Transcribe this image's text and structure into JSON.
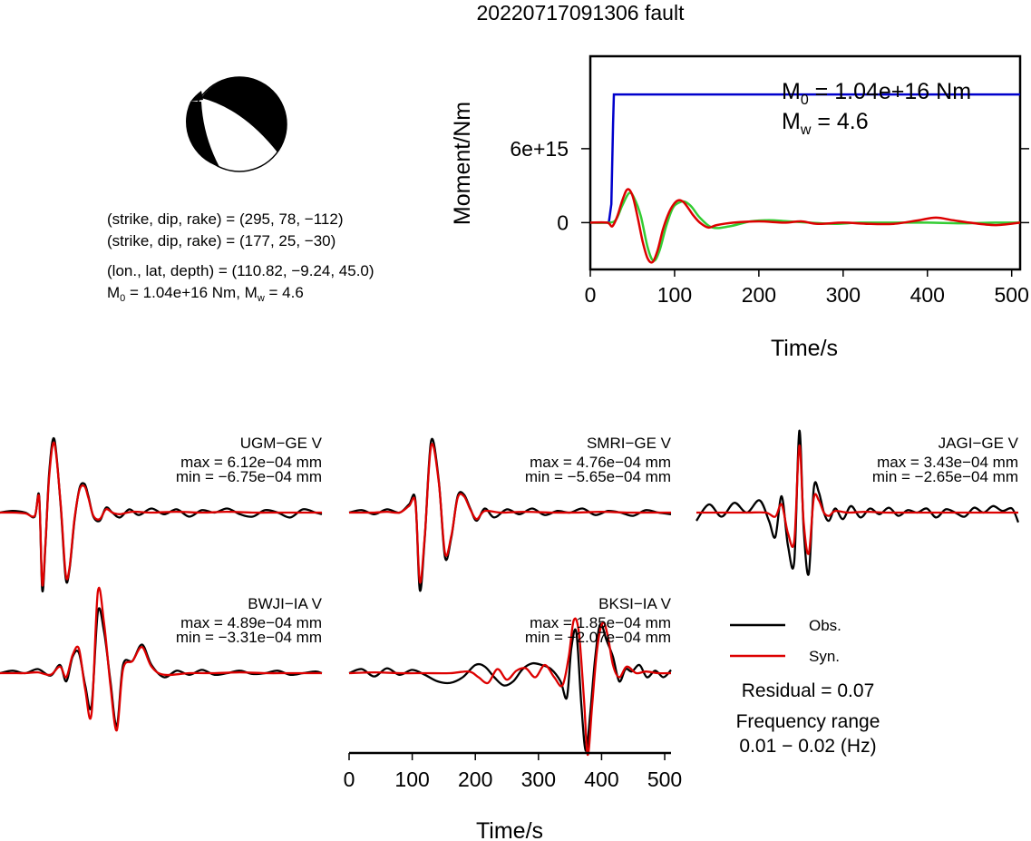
{
  "title": "20220717091306 fault",
  "mechanism": {
    "plane1": "(strike, dip, rake) = (295, 78, −112)",
    "plane2": "(strike, dip, rake) = (177, 25, −30)",
    "location": "(lon., lat, depth) = (110.82, −9.24, 45.0)",
    "moment_prefix": "M",
    "moment_sub": "0",
    "moment_rest": " = 1.04e+16 Nm, M",
    "moment_sub2": "w",
    "moment_end": " = 4.6"
  },
  "stf_annotation": {
    "m0_prefix": "M",
    "m0_sub": "0",
    "m0_value": " = 1.04e+16 Nm",
    "mw_prefix": "M",
    "mw_sub": "w",
    "mw_value": " = 4.6"
  },
  "legend": {
    "obs": "Obs.",
    "syn": "Syn.",
    "residual": "Residual = 0.07",
    "freq_label": "Frequency range",
    "freq_value": "0.01 − 0.02 (Hz)"
  },
  "colors": {
    "moment": "#0000cc",
    "observed": "#000000",
    "synthetic": "#dd0000",
    "stf_green": "#33cc33"
  },
  "chart_data": [
    {
      "type": "line",
      "ylabel": "Moment/Nm",
      "xlabel": "Time/s",
      "xlim": [
        0,
        510
      ],
      "ylim": [
        -3800000000000000.0,
        1.35e+16
      ],
      "xticks": [
        "0",
        "100",
        "200",
        "300",
        "400",
        "500"
      ],
      "yticks": [
        "0",
        "6e+15"
      ],
      "xtick_values": [
        0,
        100,
        200,
        300,
        400,
        500
      ],
      "ytick_values": [
        0,
        6000000000000000.0
      ],
      "series": [
        {
          "color": "#0000cc",
          "x": [
            0,
            22,
            25,
            27,
            28,
            510
          ],
          "y": [
            0,
            0,
            1500000000000000.0,
            8000000000000000.0,
            1.04e+16,
            1.04e+16
          ]
        },
        {
          "color": "#33cc33",
          "x": [
            0,
            20,
            30,
            38,
            46,
            52,
            60,
            68,
            75,
            82,
            90,
            98,
            106,
            112,
            120,
            130,
            145,
            165,
            190,
            212,
            235,
            260,
            290,
            320,
            360,
            400,
            440,
            480,
            510
          ],
          "y": [
            0,
            0,
            200000000000000.0,
            1400000000000000.0,
            2400000000000000.0,
            2000000000000000.0,
            500000000000000.0,
            -2000000000000000.0,
            -3100000000000000.0,
            -2300000000000000.0,
            -300000000000000.0,
            1200000000000000.0,
            1650000000000000.0,
            1700000000000000.0,
            1300000000000000.0,
            400000000000000.0,
            -400000000000000.0,
            -300000000000000.0,
            100000000000000.0,
            200000000000000.0,
            100000000000000.0,
            0,
            -100000000000000.0,
            0,
            0,
            0,
            -50000000000000.0,
            0,
            0
          ]
        },
        {
          "color": "#dd0000",
          "x": [
            0,
            20,
            26,
            32,
            38,
            44,
            50,
            56,
            62,
            68,
            74,
            80,
            86,
            92,
            98,
            104,
            110,
            116,
            122,
            130,
            140,
            150,
            170,
            200,
            230,
            250,
            270,
            300,
            330,
            360,
            390,
            410,
            430,
            450,
            480,
            510
          ],
          "y": [
            0,
            0,
            -300000000000000.0,
            500000000000000.0,
            1800000000000000.0,
            2700000000000000.0,
            2200000000000000.0,
            500000000000000.0,
            -1500000000000000.0,
            -2900000000000000.0,
            -3200000000000000.0,
            -2200000000000000.0,
            -600000000000000.0,
            600000000000000.0,
            1400000000000000.0,
            1800000000000000.0,
            1700000000000000.0,
            1200000000000000.0,
            600000000000000.0,
            0,
            -400000000000000.0,
            -200000000000000.0,
            0,
            100000000000000.0,
            0,
            100000000000000.0,
            -100000000000000.0,
            0,
            -100000000000000.0,
            -100000000000000.0,
            200000000000000.0,
            400000000000000.0,
            200000000000000.0,
            0,
            -200000000000000.0,
            0
          ]
        }
      ]
    },
    {
      "type": "line",
      "xlabel": "Time/s",
      "xlim": [
        0,
        510
      ],
      "xticks": [
        "0",
        "100",
        "200",
        "300",
        "400",
        "500"
      ],
      "xtick_values": [
        0,
        100,
        200,
        300,
        400,
        500
      ],
      "stations": [
        {
          "label": "UGM−GE V",
          "max": "max = 6.12e−04 mm",
          "min": "min = −6.75e−04 mm",
          "max_value": 0.000612,
          "min_value": -0.000675,
          "observed": {
            "x": [
              0,
              20,
              40,
              55,
              62,
              67,
              72,
              78,
              86,
              96,
              104,
              110,
              118,
              126,
              134,
              140,
              148,
              158,
              168,
              178,
              190,
              205,
              220,
              240,
              260,
              280,
              300,
              320,
              340,
              360,
              380,
              400,
              420,
              440,
              460,
              480,
              500,
              510
            ],
            "y": [
              0,
              0.02,
              0.0,
              -0.05,
              0.2,
              -0.95,
              -0.4,
              0.5,
              0.9,
              0.1,
              -0.8,
              -0.7,
              -0.1,
              0.3,
              0.35,
              0.2,
              -0.05,
              -0.1,
              0.06,
              0.0,
              -0.06,
              0.04,
              -0.03,
              0.05,
              -0.02,
              0.04,
              -0.05,
              0.03,
              0.0,
              0.05,
              -0.02,
              -0.05,
              0.03,
              0.0,
              -0.06,
              0.04,
              0.0,
              -0.02
            ]
          },
          "synthetic": {
            "x": [
              0,
              20,
              40,
              55,
              62,
              67,
              72,
              78,
              86,
              96,
              104,
              110,
              118,
              126,
              134,
              140,
              148,
              158,
              168,
              178,
              190,
              210,
              240,
              280,
              320,
              360,
              400,
              440,
              480,
              510
            ],
            "y": [
              0,
              0.0,
              -0.01,
              -0.04,
              0.18,
              -0.88,
              -0.38,
              0.45,
              0.85,
              0.12,
              -0.75,
              -0.68,
              -0.08,
              0.28,
              0.32,
              0.18,
              -0.04,
              -0.08,
              0.04,
              0.0,
              -0.02,
              0.01,
              0.0,
              0.01,
              0.0,
              0.01,
              0.0,
              0.0,
              0.0,
              0.0
            ]
          }
        },
        {
          "label": "SMRI−GE V",
          "max": "max = 4.76e−04 mm",
          "min": "min = −5.65e−04 mm",
          "max_value": 0.000476,
          "min_value": -0.000565,
          "observed": {
            "x": [
              0,
              20,
              40,
              60,
              80,
              95,
              105,
              112,
              120,
              130,
              142,
              152,
              162,
              172,
              182,
              192,
              202,
              215,
              230,
              250,
              270,
              290,
              310,
              330,
              350,
              370,
              390,
              410,
              430,
              450,
              470,
              490,
              510
            ],
            "y": [
              0,
              0.03,
              -0.02,
              0.04,
              0.0,
              0.1,
              0.15,
              -0.95,
              -0.3,
              0.88,
              0.4,
              -0.55,
              -0.3,
              0.2,
              0.22,
              0.05,
              -0.1,
              0.05,
              -0.06,
              0.04,
              -0.02,
              0.05,
              -0.03,
              0.02,
              0.0,
              0.05,
              -0.03,
              0.02,
              0.0,
              -0.04,
              0.03,
              0.0,
              -0.02
            ]
          },
          "synthetic": {
            "x": [
              0,
              20,
              40,
              60,
              80,
              95,
              105,
              112,
              120,
              130,
              142,
              152,
              162,
              172,
              182,
              192,
              202,
              215,
              240,
              280,
              320,
              360,
              400,
              440,
              480,
              510
            ],
            "y": [
              0,
              0.0,
              0.0,
              0.01,
              0.0,
              0.08,
              0.12,
              -0.85,
              -0.28,
              0.82,
              0.38,
              -0.5,
              -0.28,
              0.18,
              0.2,
              0.04,
              -0.08,
              0.02,
              0.0,
              0.01,
              0.0,
              0.0,
              0.01,
              0.0,
              0.0,
              0.0
            ]
          }
        },
        {
          "label": "JAGI−GE V",
          "max": "max = 3.43e−04 mm",
          "min": "min = −2.65e−04 mm",
          "max_value": 0.000343,
          "min_value": -0.000265,
          "observed": {
            "x": [
              0,
              20,
              40,
              60,
              80,
              100,
              115,
              125,
              135,
              145,
              155,
              163,
              170,
              178,
              186,
              194,
              202,
              210,
              220,
              232,
              245,
              260,
              275,
              290,
              305,
              320,
              335,
              350,
              365,
              380,
              395,
              410,
              425,
              440,
              455,
              470,
              485,
              500,
              510
            ],
            "y": [
              -0.1,
              0.1,
              -0.05,
              0.12,
              0.0,
              0.15,
              -0.1,
              -0.3,
              0.2,
              -0.4,
              -0.6,
              1.0,
              -0.2,
              -0.75,
              0.3,
              0.25,
              0.0,
              -0.1,
              0.05,
              -0.08,
              0.08,
              -0.06,
              0.05,
              -0.02,
              0.06,
              -0.04,
              0.03,
              0.0,
              0.05,
              -0.06,
              0.04,
              0.0,
              -0.05,
              0.06,
              0.0,
              0.08,
              0.02,
              0.05,
              -0.12
            ]
          },
          "synthetic": {
            "x": [
              0,
              40,
              80,
              110,
              125,
              135,
              145,
              155,
              163,
              170,
              178,
              186,
              194,
              202,
              210,
              220,
              240,
              270,
              300,
              340,
              380,
              420,
              460,
              500,
              510
            ],
            "y": [
              0,
              0.0,
              0.0,
              0.0,
              -0.05,
              0.1,
              -0.25,
              -0.35,
              0.82,
              -0.12,
              -0.5,
              0.18,
              0.15,
              0.0,
              -0.04,
              0.02,
              0.0,
              0.01,
              0.0,
              0.0,
              0.0,
              0.0,
              0.0,
              0.0,
              0.0
            ]
          }
        },
        {
          "label": "BWJI−IA V",
          "max": "max = 4.89e−04 mm",
          "min": "min = −3.31e−04 mm",
          "max_value": 0.000489,
          "min_value": -0.000331,
          "observed": {
            "x": [
              0,
              20,
              40,
              60,
              80,
              95,
              105,
              115,
              125,
              135,
              145,
              155,
              165,
              175,
              185,
              195,
              210,
              225,
              240,
              260,
              280,
              300,
              320,
              340,
              360,
              380,
              400,
              420,
              440,
              460,
              480,
              500,
              510
            ],
            "y": [
              0,
              0.03,
              0.0,
              0.05,
              -0.03,
              0.1,
              -0.1,
              0.2,
              0.25,
              -0.15,
              -0.4,
              0.75,
              0.5,
              -0.1,
              -0.65,
              0.1,
              0.15,
              0.35,
              0.1,
              -0.05,
              0.03,
              -0.02,
              0.04,
              -0.02,
              0.0,
              0.03,
              -0.01,
              0.0,
              0.03,
              -0.02,
              0.0,
              0.02,
              0.0
            ]
          },
          "synthetic": {
            "x": [
              0,
              20,
              40,
              60,
              80,
              95,
              105,
              115,
              125,
              135,
              145,
              155,
              165,
              175,
              185,
              195,
              210,
              225,
              240,
              260,
              300,
              340,
              380,
              420,
              460,
              510
            ],
            "y": [
              0,
              0.0,
              0.0,
              0.01,
              -0.02,
              0.08,
              -0.05,
              0.22,
              0.3,
              -0.2,
              -0.5,
              1.0,
              0.6,
              -0.15,
              -0.7,
              0.05,
              0.15,
              0.32,
              0.08,
              -0.02,
              0.0,
              0.0,
              0.01,
              0.0,
              0.0,
              0.0
            ]
          }
        },
        {
          "label": "BKSI−IA V",
          "max": "max = 1.85e−04 mm",
          "min": "min = −2.07e−04 mm",
          "max_value": 0.000185,
          "min_value": -0.000207,
          "observed": {
            "x": [
              0,
              20,
              40,
              60,
              80,
              100,
              120,
              140,
              160,
              180,
              200,
              215,
              230,
              245,
              260,
              275,
              290,
              305,
              320,
              335,
              345,
              352,
              360,
              368,
              375,
              382,
              390,
              398,
              408,
              418,
              428,
              438,
              448,
              460,
              472,
              485,
              498,
              510
            ],
            "y": [
              0,
              0.05,
              -0.04,
              0.06,
              -0.02,
              0.04,
              -0.02,
              -0.1,
              -0.12,
              -0.05,
              0.1,
              0.08,
              -0.05,
              -0.15,
              -0.1,
              0.05,
              0.12,
              0.1,
              0.05,
              -0.1,
              -0.3,
              0.3,
              0.5,
              -0.4,
              -0.95,
              -0.5,
              0.2,
              0.6,
              0.4,
              0.2,
              -0.1,
              0.05,
              0.02,
              0.1,
              -0.05,
              0.03,
              -0.05,
              0.04
            ]
          },
          "synthetic": {
            "x": [
              0,
              40,
              80,
              120,
              160,
              190,
              205,
              220,
              235,
              250,
              265,
              280,
              295,
              310,
              325,
              338,
              348,
              356,
              364,
              372,
              378,
              385,
              393,
              402,
              410,
              418,
              428,
              440,
              455,
              470,
              490,
              510
            ],
            "y": [
              0,
              0.01,
              0.0,
              0.0,
              0.0,
              0.02,
              -0.05,
              -0.12,
              0.05,
              -0.08,
              0.03,
              0.06,
              -0.05,
              0.1,
              -0.05,
              -0.15,
              0.2,
              0.65,
              0.5,
              -0.3,
              -1.0,
              -0.4,
              0.3,
              0.62,
              0.45,
              0.1,
              -0.05,
              0.08,
              0.0,
              0.02,
              0.0,
              0.0
            ]
          }
        }
      ]
    }
  ]
}
